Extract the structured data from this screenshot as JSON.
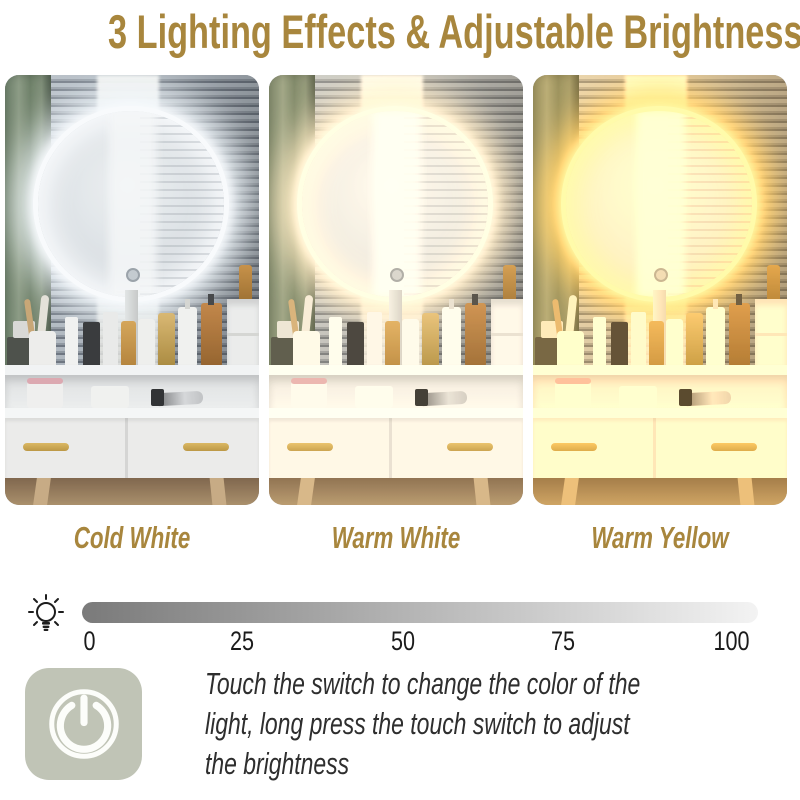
{
  "title": "3 Lighting Effects & Adjustable Brightness",
  "modes": [
    {
      "label": "Cold White",
      "glow": "#f8fdff",
      "ring": "#ffffff",
      "tint": "rgba(185,205,225,0.10)"
    },
    {
      "label": "Warm White",
      "glow": "#ffedc9",
      "ring": "#fff7e6",
      "tint": "rgba(255,226,180,0.14)"
    },
    {
      "label": "Warm Yellow",
      "glow": "#ffd261",
      "ring": "#ffeeb8",
      "tint": "rgba(255,186,84,0.22)"
    }
  ],
  "brightness_slider": {
    "icon": "light-bulb-icon",
    "ticks": [
      "0",
      "25",
      "50",
      "75",
      "100"
    ],
    "bar_colors": {
      "start": "#7a7a7a",
      "end": "#f3f3f3"
    }
  },
  "instruction": {
    "icon": "power-switch-icon",
    "lines": [
      "Touch the switch to change the color of the",
      "light, long press the touch switch to adjust",
      "the brightness"
    ]
  },
  "colors": {
    "accent_gold": "#a8863d",
    "text_dark": "#2e2e2e",
    "switch_bg": "#c0c4b6"
  }
}
